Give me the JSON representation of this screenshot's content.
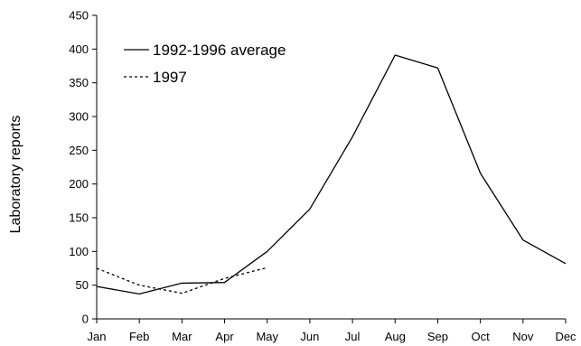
{
  "chart_data": {
    "type": "line",
    "title": "",
    "xlabel": "",
    "ylabel": "Laboratory reports",
    "categories": [
      "Jan",
      "Feb",
      "Mar",
      "Apr",
      "May",
      "Jun",
      "Jul",
      "Aug",
      "Sep",
      "Oct",
      "Nov",
      "Dec"
    ],
    "ylim": [
      0,
      450
    ],
    "yticks": [
      0,
      50,
      100,
      150,
      200,
      250,
      300,
      350,
      400,
      450
    ],
    "grid": false,
    "legend_position": "top-left",
    "series": [
      {
        "name": "1992-1996 average",
        "style": "solid",
        "color": "#000000",
        "values": [
          48,
          37,
          53,
          54,
          100,
          163,
          270,
          391,
          372,
          216,
          117,
          82
        ]
      },
      {
        "name": "1997",
        "style": "dotted",
        "color": "#000000",
        "values": [
          75,
          50,
          38,
          60,
          76,
          null,
          null,
          null,
          null,
          null,
          null,
          null
        ]
      }
    ]
  }
}
